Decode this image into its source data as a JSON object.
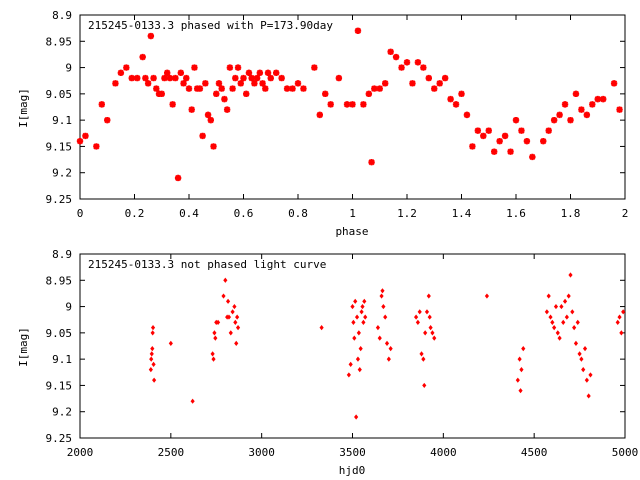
{
  "chart_data": [
    {
      "type": "scatter",
      "title": "215245-0133.3 phased with P=173.90day",
      "xlabel": "phase",
      "ylabel": "I[mag]",
      "xlim": [
        0,
        2
      ],
      "ylim": [
        9.25,
        8.9
      ],
      "y_inverted": true,
      "xticks": [
        0,
        0.2,
        0.4,
        0.6,
        0.8,
        1,
        1.2,
        1.4,
        1.6,
        1.8,
        2
      ],
      "xtick_labels": [
        "0",
        "0.2",
        "0.4",
        "0.6",
        "0.8",
        "1",
        "1.2",
        "1.4",
        "1.6",
        "1.8",
        "2"
      ],
      "yticks": [
        8.9,
        8.95,
        9,
        9.05,
        9.1,
        9.15,
        9.2,
        9.25
      ],
      "ytick_labels": [
        "8.9",
        "8.95",
        "9",
        "9.05",
        "9.1",
        "9.15",
        "9.2",
        "9.25"
      ],
      "grid": false,
      "marker": "star",
      "color": "#ff0000",
      "series": [
        {
          "x": [
            0.0,
            0.02,
            0.06,
            0.08,
            0.1,
            0.13,
            0.15,
            0.17,
            0.19,
            0.21,
            0.23,
            0.24,
            0.25,
            0.26,
            0.27,
            0.28,
            0.29,
            0.3,
            0.31,
            0.32,
            0.33,
            0.34,
            0.35,
            0.36,
            0.37,
            0.38,
            0.39,
            0.4,
            0.41,
            0.42,
            0.43,
            0.44,
            0.45,
            0.46,
            0.47,
            0.48,
            0.49,
            0.5,
            0.51,
            0.52,
            0.53,
            0.54,
            0.55,
            0.56,
            0.57,
            0.58,
            0.59,
            0.6,
            0.61,
            0.62,
            0.63,
            0.64,
            0.65,
            0.66,
            0.67,
            0.68,
            0.69,
            0.7,
            0.72,
            0.74,
            0.76,
            0.78,
            0.8,
            0.82,
            0.86,
            0.88,
            0.9,
            0.92,
            0.95,
            0.98,
            1.0,
            1.02,
            1.04,
            1.06,
            1.07,
            1.08,
            1.1,
            1.12,
            1.14,
            1.16,
            1.18,
            1.2,
            1.22,
            1.24,
            1.26,
            1.28,
            1.3,
            1.32,
            1.34,
            1.36,
            1.38,
            1.4,
            1.42,
            1.44,
            1.46,
            1.48,
            1.5,
            1.52,
            1.54,
            1.56,
            1.58,
            1.6,
            1.62,
            1.64,
            1.66,
            1.7,
            1.72,
            1.74,
            1.76,
            1.78,
            1.8,
            1.82,
            1.84,
            1.86,
            1.88,
            1.9,
            1.92,
            1.96,
            1.98
          ],
          "y": [
            9.14,
            9.13,
            9.15,
            9.07,
            9.1,
            9.03,
            9.01,
            9.0,
            9.02,
            9.02,
            8.98,
            9.02,
            9.03,
            8.94,
            9.02,
            9.04,
            9.05,
            9.05,
            9.02,
            9.01,
            9.02,
            9.07,
            9.02,
            9.21,
            9.01,
            9.03,
            9.02,
            9.04,
            9.08,
            9.0,
            9.04,
            9.04,
            9.13,
            9.03,
            9.09,
            9.1,
            9.15,
            9.05,
            9.03,
            9.04,
            9.06,
            9.08,
            9.0,
            9.04,
            9.02,
            9.0,
            9.03,
            9.02,
            9.05,
            9.01,
            9.02,
            9.03,
            9.02,
            9.01,
            9.03,
            9.04,
            9.01,
            9.02,
            9.01,
            9.02,
            9.04,
            9.04,
            9.03,
            9.04,
            9.0,
            9.09,
            9.05,
            9.07,
            9.02,
            9.07,
            9.07,
            8.93,
            9.07,
            9.05,
            9.18,
            9.04,
            9.04,
            9.03,
            8.97,
            8.98,
            9.0,
            8.99,
            9.03,
            8.99,
            9.0,
            9.02,
            9.04,
            9.03,
            9.02,
            9.06,
            9.07,
            9.05,
            9.09,
            9.15,
            9.12,
            9.13,
            9.12,
            9.16,
            9.14,
            9.13,
            9.16,
            9.1,
            9.12,
            9.14,
            9.17,
            9.14,
            9.12,
            9.1,
            9.09,
            9.07,
            9.1,
            9.05,
            9.08,
            9.09,
            9.07,
            9.06,
            9.06,
            9.03,
            9.08
          ]
        }
      ]
    },
    {
      "type": "scatter",
      "title": "215245-0133.3 not phased light curve",
      "xlabel": "hjd0",
      "ylabel": "I[mag]",
      "xlim": [
        2000,
        5000
      ],
      "ylim": [
        9.25,
        8.9
      ],
      "y_inverted": true,
      "xticks": [
        2000,
        2500,
        3000,
        3500,
        4000,
        4500,
        5000
      ],
      "xtick_labels": [
        "2000",
        "2500",
        "3000",
        "3500",
        "4000",
        "4500",
        "5000"
      ],
      "yticks": [
        8.9,
        8.95,
        9,
        9.05,
        9.1,
        9.15,
        9.2,
        9.25
      ],
      "ytick_labels": [
        "8.9",
        "8.95",
        "9",
        "9.05",
        "9.1",
        "9.15",
        "9.2",
        "9.25"
      ],
      "grid": false,
      "marker": "diamond",
      "color": "#ff0000",
      "series": [
        {
          "x": [
            2390,
            2392,
            2395,
            2398,
            2400,
            2402,
            2405,
            2408,
            2500,
            2620,
            2730,
            2735,
            2740,
            2745,
            2750,
            2760,
            2790,
            2800,
            2810,
            2815,
            2820,
            2830,
            2840,
            2850,
            2855,
            2860,
            2865,
            2870,
            3330,
            3480,
            3490,
            3500,
            3505,
            3510,
            3515,
            3520,
            3525,
            3530,
            3535,
            3540,
            3545,
            3550,
            3555,
            3560,
            3565,
            3570,
            3640,
            3650,
            3660,
            3665,
            3670,
            3680,
            3690,
            3700,
            3710,
            3850,
            3860,
            3870,
            3880,
            3890,
            3895,
            3900,
            3910,
            3920,
            3925,
            3930,
            3940,
            3950,
            4240,
            4410,
            4420,
            4425,
            4430,
            4440,
            4570,
            4580,
            4590,
            4600,
            4610,
            4620,
            4630,
            4640,
            4650,
            4660,
            4670,
            4680,
            4690,
            4700,
            4710,
            4720,
            4730,
            4740,
            4750,
            4760,
            4770,
            4780,
            4790,
            4800,
            4810,
            4960,
            4970,
            4980,
            4990
          ],
          "y": [
            9.12,
            9.1,
            9.09,
            9.08,
            9.05,
            9.04,
            9.11,
            9.14,
            9.07,
            9.18,
            9.09,
            9.1,
            9.05,
            9.06,
            9.03,
            9.03,
            8.98,
            8.95,
            9.02,
            8.99,
            9.02,
            9.05,
            9.01,
            9.0,
            9.03,
            9.07,
            9.02,
            9.04,
            9.04,
            9.13,
            9.11,
            9.0,
            9.03,
            9.06,
            8.99,
            9.21,
            9.02,
            9.1,
            9.05,
            9.12,
            9.08,
            9.01,
            9.0,
            9.03,
            8.99,
            9.02,
            9.04,
            9.06,
            8.98,
            8.97,
            9.0,
            9.02,
            9.07,
            9.1,
            9.08,
            9.02,
            9.03,
            9.01,
            9.09,
            9.1,
            9.15,
            9.05,
            9.01,
            8.98,
            9.02,
            9.04,
            9.05,
            9.06,
            8.98,
            9.14,
            9.1,
            9.16,
            9.12,
            9.08,
            9.01,
            8.98,
            9.02,
            9.03,
            9.04,
            9.0,
            9.05,
            9.06,
            9.0,
            9.03,
            8.99,
            9.02,
            8.98,
            8.94,
            9.01,
            9.04,
            9.07,
            9.03,
            9.09,
            9.1,
            9.12,
            9.08,
            9.14,
            9.17,
            9.13,
            9.03,
            9.02,
            9.05,
            9.01
          ]
        }
      ]
    }
  ]
}
